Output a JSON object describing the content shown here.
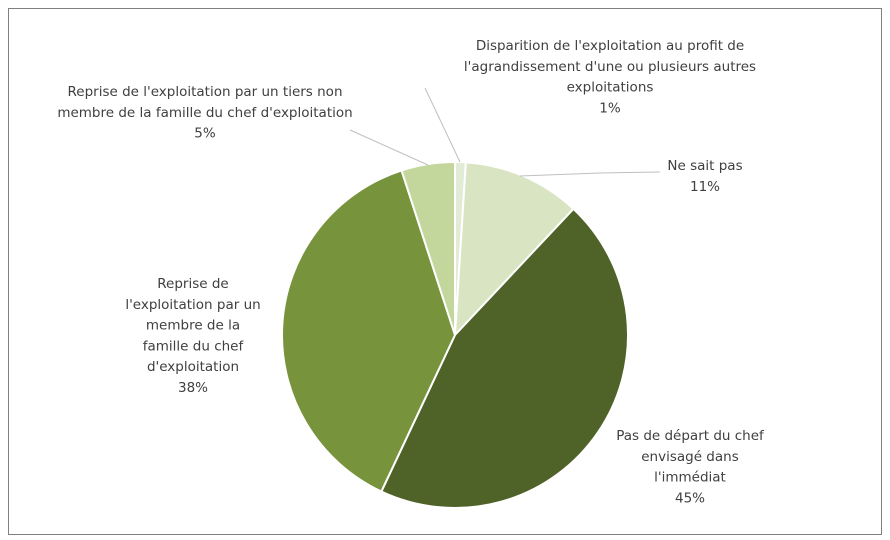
{
  "chart_data": {
    "type": "pie",
    "categories": [
      "Disparition de l'exploitation au profit de l'agrandissement d'une ou plusieurs autres exploitations",
      "Ne sait pas",
      "Pas de départ du chef envisagé dans l'immédiat",
      "Reprise de l'exploitation par un membre de la famille du chef d'exploitation",
      "Reprise de l'exploitation par un tiers non membre de la famille du chef d'exploitation"
    ],
    "values": [
      1,
      11,
      45,
      38,
      5
    ],
    "value_labels": [
      "1%",
      "11%",
      "45%",
      "38%",
      "5%"
    ],
    "colors": [
      "#e2ebd5",
      "#d8e4c2",
      "#4f6228",
      "#77933c",
      "#c3d69b"
    ]
  }
}
